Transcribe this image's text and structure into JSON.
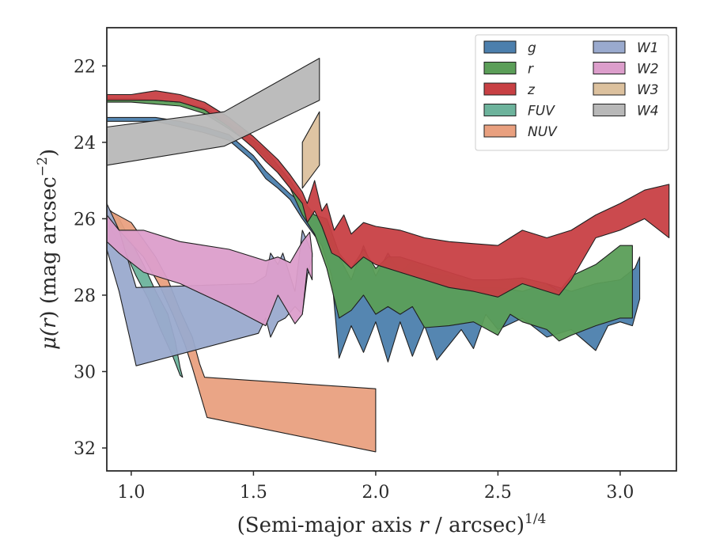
{
  "chart_data": {
    "type": "area",
    "xlabel_main": "(Semi-major axis ",
    "xlabel_var": "r",
    "xlabel_unit": " / arcsec)",
    "xlabel_power": "1/4",
    "ylabel_main": "μ(",
    "ylabel_var": "r",
    "ylabel_unit": ") (mag arcsec",
    "ylabel_power": "−2",
    "ylabel_close": ")",
    "xlim": [
      0.9,
      3.23
    ],
    "ylim": [
      32.6,
      21.0
    ],
    "y_inverted": true,
    "xticks": [
      1.0,
      1.5,
      2.0,
      2.5,
      3.0
    ],
    "xtick_labels": [
      "1.0",
      "1.5",
      "2.0",
      "2.5",
      "3.0"
    ],
    "yticks": [
      22,
      24,
      26,
      28,
      30,
      32
    ],
    "ytick_labels": [
      "22",
      "24",
      "26",
      "28",
      "30",
      "32"
    ],
    "grid": false,
    "legend_position": "top-right",
    "legend_columns": 2,
    "series": [
      {
        "name": "g",
        "color": "#4c7fad",
        "upper": [
          [
            0.9,
            23.35
          ],
          [
            1.0,
            23.35
          ],
          [
            1.1,
            23.35
          ],
          [
            1.2,
            23.45
          ],
          [
            1.3,
            23.6
          ],
          [
            1.4,
            23.8
          ],
          [
            1.5,
            24.35
          ],
          [
            1.55,
            24.75
          ],
          [
            1.6,
            25.05
          ],
          [
            1.65,
            25.35
          ],
          [
            1.7,
            25.6
          ],
          [
            1.75,
            25.9
          ],
          [
            1.8,
            26.3
          ],
          [
            1.85,
            27.0
          ],
          [
            1.9,
            27.6
          ],
          [
            1.95,
            26.7
          ],
          [
            2.0,
            27.5
          ],
          [
            2.05,
            26.9
          ],
          [
            2.1,
            27.4
          ],
          [
            2.15,
            27.1
          ],
          [
            2.2,
            27.4
          ],
          [
            2.3,
            27.5
          ],
          [
            2.4,
            27.8
          ],
          [
            2.5,
            27.8
          ],
          [
            2.6,
            27.9
          ],
          [
            2.7,
            27.7
          ],
          [
            2.8,
            27.9
          ],
          [
            2.9,
            27.7
          ],
          [
            3.0,
            27.6
          ],
          [
            3.06,
            27.3
          ],
          [
            3.08,
            27.0
          ]
        ],
        "lower": [
          [
            3.08,
            28.1
          ],
          [
            3.05,
            28.8
          ],
          [
            3.0,
            28.7
          ],
          [
            2.95,
            28.8
          ],
          [
            2.9,
            29.45
          ],
          [
            2.8,
            28.9
          ],
          [
            2.7,
            29.1
          ],
          [
            2.6,
            28.6
          ],
          [
            2.5,
            28.9
          ],
          [
            2.45,
            28.5
          ],
          [
            2.4,
            29.4
          ],
          [
            2.35,
            28.9
          ],
          [
            2.25,
            29.7
          ],
          [
            2.2,
            28.8
          ],
          [
            2.15,
            29.6
          ],
          [
            2.1,
            28.7
          ],
          [
            2.05,
            29.75
          ],
          [
            2.0,
            28.7
          ],
          [
            1.95,
            29.5
          ],
          [
            1.9,
            28.8
          ],
          [
            1.85,
            29.65
          ],
          [
            1.82,
            27.5
          ],
          [
            1.78,
            26.7
          ],
          [
            1.7,
            26.0
          ],
          [
            1.65,
            25.5
          ],
          [
            1.6,
            25.2
          ],
          [
            1.55,
            24.95
          ],
          [
            1.5,
            24.5
          ],
          [
            1.4,
            23.95
          ],
          [
            1.3,
            23.75
          ],
          [
            1.2,
            23.6
          ],
          [
            1.1,
            23.45
          ],
          [
            1.0,
            23.45
          ],
          [
            0.9,
            23.45
          ]
        ]
      },
      {
        "name": "r",
        "color": "#5b9e58",
        "upper": [
          [
            0.9,
            22.85
          ],
          [
            1.0,
            22.85
          ],
          [
            1.1,
            22.9
          ],
          [
            1.2,
            22.95
          ],
          [
            1.3,
            23.1
          ],
          [
            1.4,
            23.5
          ],
          [
            1.5,
            23.95
          ],
          [
            1.55,
            24.2
          ],
          [
            1.6,
            24.6
          ],
          [
            1.65,
            25.0
          ],
          [
            1.7,
            25.5
          ],
          [
            1.75,
            25.9
          ],
          [
            1.8,
            26.0
          ],
          [
            1.85,
            26.9
          ],
          [
            1.9,
            27.3
          ],
          [
            1.95,
            26.8
          ],
          [
            2.0,
            27.3
          ],
          [
            2.05,
            27.0
          ],
          [
            2.1,
            27.0
          ],
          [
            2.2,
            27.2
          ],
          [
            2.3,
            27.4
          ],
          [
            2.4,
            27.6
          ],
          [
            2.5,
            27.6
          ],
          [
            2.6,
            27.55
          ],
          [
            2.7,
            27.7
          ],
          [
            2.75,
            27.9
          ],
          [
            2.8,
            27.5
          ],
          [
            2.9,
            27.2
          ],
          [
            3.0,
            26.7
          ],
          [
            3.05,
            26.7
          ]
        ],
        "lower": [
          [
            3.05,
            28.6
          ],
          [
            3.0,
            28.6
          ],
          [
            2.9,
            28.8
          ],
          [
            2.8,
            29.05
          ],
          [
            2.75,
            29.2
          ],
          [
            2.7,
            28.9
          ],
          [
            2.6,
            28.7
          ],
          [
            2.55,
            28.5
          ],
          [
            2.5,
            29.05
          ],
          [
            2.4,
            28.7
          ],
          [
            2.3,
            28.8
          ],
          [
            2.2,
            28.85
          ],
          [
            2.15,
            28.3
          ],
          [
            2.1,
            28.5
          ],
          [
            2.05,
            28.3
          ],
          [
            2.0,
            28.5
          ],
          [
            1.95,
            28.0
          ],
          [
            1.9,
            28.4
          ],
          [
            1.85,
            28.6
          ],
          [
            1.8,
            27.3
          ],
          [
            1.75,
            26.4
          ],
          [
            1.7,
            25.9
          ],
          [
            1.65,
            25.2
          ],
          [
            1.6,
            24.8
          ],
          [
            1.55,
            24.4
          ],
          [
            1.5,
            24.1
          ],
          [
            1.4,
            23.65
          ],
          [
            1.3,
            23.25
          ],
          [
            1.2,
            23.05
          ],
          [
            1.1,
            23.0
          ],
          [
            1.0,
            22.95
          ],
          [
            0.9,
            22.95
          ]
        ]
      },
      {
        "name": "z",
        "color": "#c84044",
        "upper": [
          [
            0.9,
            22.75
          ],
          [
            1.0,
            22.75
          ],
          [
            1.05,
            22.7
          ],
          [
            1.1,
            22.65
          ],
          [
            1.15,
            22.7
          ],
          [
            1.2,
            22.75
          ],
          [
            1.3,
            22.95
          ],
          [
            1.4,
            23.35
          ],
          [
            1.5,
            23.85
          ],
          [
            1.55,
            24.15
          ],
          [
            1.6,
            24.45
          ],
          [
            1.65,
            24.85
          ],
          [
            1.7,
            25.3
          ],
          [
            1.72,
            25.6
          ],
          [
            1.75,
            25.0
          ],
          [
            1.78,
            25.8
          ],
          [
            1.8,
            25.6
          ],
          [
            1.83,
            26.3
          ],
          [
            1.87,
            25.9
          ],
          [
            1.9,
            26.4
          ],
          [
            1.95,
            26.1
          ],
          [
            2.0,
            26.2
          ],
          [
            2.1,
            26.3
          ],
          [
            2.2,
            26.5
          ],
          [
            2.3,
            26.6
          ],
          [
            2.4,
            26.65
          ],
          [
            2.5,
            26.7
          ],
          [
            2.6,
            26.3
          ],
          [
            2.7,
            26.5
          ],
          [
            2.8,
            26.3
          ],
          [
            2.9,
            25.9
          ],
          [
            3.0,
            25.6
          ],
          [
            3.1,
            25.25
          ],
          [
            3.2,
            25.1
          ]
        ],
        "lower": [
          [
            3.2,
            26.5
          ],
          [
            3.1,
            26.0
          ],
          [
            3.0,
            26.3
          ],
          [
            2.9,
            26.5
          ],
          [
            2.8,
            27.6
          ],
          [
            2.75,
            28.0
          ],
          [
            2.7,
            27.9
          ],
          [
            2.6,
            27.7
          ],
          [
            2.5,
            28.05
          ],
          [
            2.4,
            27.9
          ],
          [
            2.3,
            27.8
          ],
          [
            2.2,
            27.6
          ],
          [
            2.1,
            27.4
          ],
          [
            2.0,
            27.2
          ],
          [
            1.95,
            27.0
          ],
          [
            1.9,
            27.3
          ],
          [
            1.85,
            27.0
          ],
          [
            1.82,
            26.9
          ],
          [
            1.78,
            26.2
          ],
          [
            1.75,
            25.8
          ],
          [
            1.72,
            26.1
          ],
          [
            1.7,
            25.6
          ],
          [
            1.65,
            25.2
          ],
          [
            1.6,
            24.8
          ],
          [
            1.55,
            24.5
          ],
          [
            1.5,
            24.15
          ],
          [
            1.4,
            23.6
          ],
          [
            1.3,
            23.15
          ],
          [
            1.2,
            22.95
          ],
          [
            1.1,
            22.9
          ],
          [
            1.0,
            22.9
          ],
          [
            0.9,
            22.9
          ]
        ]
      },
      {
        "name": "FUV",
        "color": "#6db39c",
        "upper": [
          [
            0.9,
            25.7
          ],
          [
            0.95,
            26.0
          ],
          [
            1.0,
            26.6
          ],
          [
            1.05,
            27.2
          ],
          [
            1.1,
            27.9
          ],
          [
            1.15,
            28.5
          ],
          [
            1.18,
            29.2
          ],
          [
            1.2,
            29.9
          ],
          [
            1.21,
            30.15
          ]
        ],
        "lower": [
          [
            1.21,
            30.15
          ],
          [
            1.2,
            30.1
          ],
          [
            1.17,
            29.6
          ],
          [
            1.12,
            28.9
          ],
          [
            1.07,
            28.1
          ],
          [
            1.02,
            27.5
          ],
          [
            0.97,
            26.8
          ],
          [
            0.92,
            26.3
          ],
          [
            0.9,
            26.1
          ]
        ]
      },
      {
        "name": "NUV",
        "color": "#e9a07f",
        "upper": [
          [
            0.9,
            25.75
          ],
          [
            1.0,
            26.1
          ],
          [
            1.1,
            27.0
          ],
          [
            1.15,
            27.6
          ],
          [
            1.2,
            28.4
          ],
          [
            1.25,
            29.1
          ],
          [
            1.28,
            29.8
          ],
          [
            1.3,
            30.15
          ],
          [
            2.0,
            30.45
          ]
        ],
        "lower": [
          [
            2.0,
            32.1
          ],
          [
            1.31,
            31.2
          ],
          [
            1.25,
            29.9
          ],
          [
            1.22,
            29.3
          ],
          [
            1.17,
            28.5
          ],
          [
            1.12,
            27.8
          ],
          [
            1.05,
            27.0
          ],
          [
            0.95,
            26.3
          ],
          [
            0.9,
            26.05
          ]
        ]
      },
      {
        "name": "W1",
        "color": "#9aaace",
        "upper": [
          [
            0.9,
            25.6
          ],
          [
            0.95,
            26.3
          ],
          [
            1.02,
            27.8
          ],
          [
            1.5,
            27.7
          ],
          [
            1.55,
            27.5
          ],
          [
            1.57,
            26.9
          ],
          [
            1.6,
            27.2
          ],
          [
            1.62,
            26.9
          ],
          [
            1.67,
            27.9
          ],
          [
            1.7,
            26.3
          ],
          [
            1.72,
            26.6
          ],
          [
            1.74,
            26.9
          ]
        ],
        "lower": [
          [
            1.74,
            27.0
          ],
          [
            1.72,
            27.5
          ],
          [
            1.7,
            28.5
          ],
          [
            1.67,
            28.3
          ],
          [
            1.63,
            28.6
          ],
          [
            1.6,
            28.7
          ],
          [
            1.57,
            29.1
          ],
          [
            1.55,
            28.6
          ],
          [
            1.52,
            29.0
          ],
          [
            1.02,
            29.85
          ],
          [
            0.95,
            27.9
          ],
          [
            0.9,
            26.8
          ]
        ]
      },
      {
        "name": "W2",
        "color": "#dc9ecb",
        "upper": [
          [
            0.9,
            25.9
          ],
          [
            0.95,
            26.3
          ],
          [
            1.05,
            26.3
          ],
          [
            1.2,
            26.6
          ],
          [
            1.4,
            26.8
          ],
          [
            1.55,
            27.1
          ],
          [
            1.6,
            27.0
          ],
          [
            1.65,
            27.15
          ],
          [
            1.7,
            26.6
          ],
          [
            1.73,
            26.35
          ],
          [
            1.74,
            26.9
          ]
        ],
        "lower": [
          [
            1.74,
            27.6
          ],
          [
            1.72,
            27.3
          ],
          [
            1.7,
            28.5
          ],
          [
            1.67,
            28.75
          ],
          [
            1.6,
            28.0
          ],
          [
            1.55,
            28.8
          ],
          [
            1.4,
            28.3
          ],
          [
            1.2,
            27.7
          ],
          [
            1.05,
            27.4
          ],
          [
            0.95,
            26.9
          ],
          [
            0.9,
            26.6
          ]
        ]
      },
      {
        "name": "W3",
        "color": "#dcc19e",
        "upper": [
          [
            1.7,
            24.0
          ],
          [
            1.77,
            23.2
          ]
        ],
        "lower": [
          [
            1.77,
            24.6
          ],
          [
            1.7,
            25.2
          ]
        ]
      },
      {
        "name": "W4",
        "color": "#b8b8b8",
        "upper": [
          [
            0.9,
            23.6
          ],
          [
            1.38,
            23.2
          ],
          [
            1.77,
            21.8
          ]
        ],
        "lower": [
          [
            1.77,
            22.9
          ],
          [
            1.38,
            24.1
          ],
          [
            0.9,
            24.6
          ]
        ]
      }
    ]
  }
}
